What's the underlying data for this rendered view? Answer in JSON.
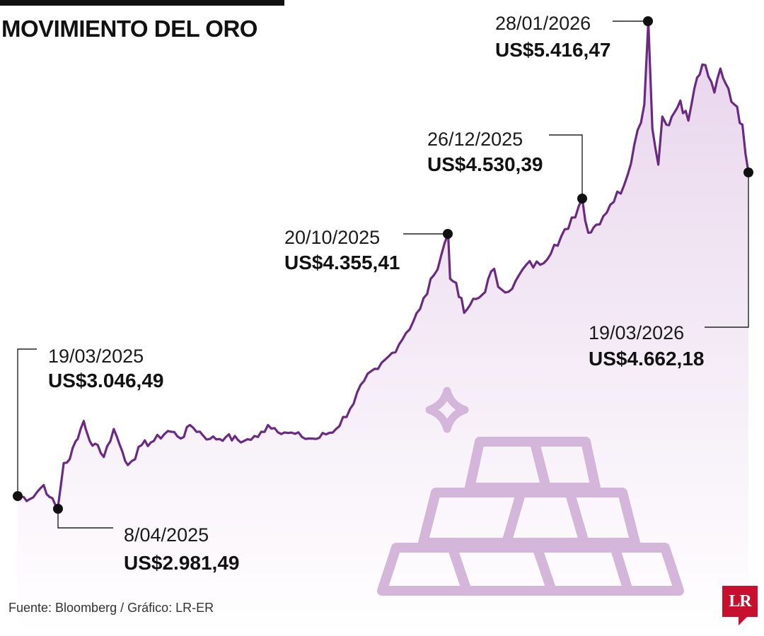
{
  "title": "MOVIMIENTO DEL ORO",
  "source": "Fuente: Bloomberg / Gráfico: LR-ER",
  "brand": {
    "logo_text": "LR",
    "logo_color": "#c8102e"
  },
  "colors": {
    "line": "#6b2a82",
    "area_top": "#e8d4ec",
    "area_bottom": "#ffffff",
    "icon": "#d3b6d9"
  },
  "chart_data": {
    "type": "area",
    "title": "MOVIMIENTO DEL ORO",
    "xlabel": "",
    "ylabel": "",
    "x_range": [
      "19/03/2025",
      "19/03/2026"
    ],
    "ylim": [
      2700,
      5500
    ],
    "grid": false,
    "axes_visible": false,
    "series": [
      {
        "x": [
          "19/03/2025",
          "25/03/2025",
          "01/04/2025",
          "04/04/2025",
          "08/04/2025",
          "11/04/2025",
          "14/04/2025",
          "17/04/2025",
          "18/04/2025",
          "21/04/2025",
          "22/04/2025",
          "24/04/2025",
          "28/04/2025",
          "01/05/2025",
          "06/05/2025",
          "09/05/2025",
          "13/05/2025",
          "15/05/2025",
          "20/05/2025",
          "26/05/2025",
          "02/06/2025",
          "10/06/2025",
          "13/06/2025",
          "23/06/2025",
          "01/07/2025",
          "10/07/2025",
          "17/07/2025",
          "22/07/2025",
          "01/08/2025",
          "08/08/2025",
          "15/08/2025",
          "25/08/2025",
          "01/09/2025",
          "08/09/2025",
          "15/09/2025",
          "22/09/2025",
          "29/09/2025",
          "06/10/2025",
          "13/10/2025",
          "20/10/2025",
          "21/10/2025",
          "24/10/2025",
          "28/10/2025",
          "31/10/2025",
          "06/11/2025",
          "12/11/2025",
          "14/11/2025",
          "21/11/2025",
          "28/11/2025",
          "05/12/2025",
          "12/12/2025",
          "19/12/2025",
          "26/12/2025",
          "29/12/2025",
          "02/01/2026",
          "09/01/2026",
          "16/01/2026",
          "21/01/2026",
          "26/01/2026",
          "28/01/2026",
          "30/01/2026",
          "02/02/2026",
          "04/02/2026",
          "06/02/2026",
          "10/02/2026",
          "13/02/2026",
          "17/02/2026",
          "20/02/2026",
          "24/02/2026",
          "27/02/2026",
          "02/03/2026",
          "05/03/2026",
          "09/03/2026",
          "12/03/2026",
          "16/03/2026",
          "19/03/2026"
        ],
        "values": [
          3046.49,
          3030,
          3100,
          3040,
          2981.49,
          3210,
          3230,
          3320,
          3330,
          3420,
          3380,
          3320,
          3300,
          3240,
          3380,
          3300,
          3200,
          3220,
          3300,
          3320,
          3370,
          3340,
          3400,
          3330,
          3340,
          3320,
          3340,
          3400,
          3360,
          3340,
          3330,
          3380,
          3480,
          3620,
          3680,
          3760,
          3860,
          3980,
          4150,
          4355.41,
          4130,
          4110,
          3960,
          4000,
          4050,
          4180,
          4090,
          4080,
          4200,
          4200,
          4300,
          4380,
          4530.39,
          4360,
          4400,
          4500,
          4600,
          4800,
          5000,
          5416.47,
          4880,
          4700,
          4940,
          4900,
          4960,
          5020,
          4920,
          5080,
          5200,
          5140,
          5060,
          5180,
          5080,
          5000,
          4900,
          4662.18
        ]
      }
    ],
    "annotations": [
      {
        "date": "19/03/2025",
        "price": "US$3.046,49",
        "x": "19/03/2025",
        "y": 3046.49
      },
      {
        "date": "8/04/2025",
        "price": "US$2.981,49",
        "x": "08/04/2025",
        "y": 2981.49
      },
      {
        "date": "20/10/2025",
        "price": "US$4.355,41",
        "x": "20/10/2025",
        "y": 4355.41
      },
      {
        "date": "26/12/2025",
        "price": "US$4.530,39",
        "x": "26/12/2025",
        "y": 4530.39
      },
      {
        "date": "28/01/2026",
        "price": "US$5.416,47",
        "x": "28/01/2026",
        "y": 5416.47
      },
      {
        "date": "19/03/2026",
        "price": "US$4.662,18",
        "x": "19/03/2026",
        "y": 4662.18
      }
    ]
  }
}
